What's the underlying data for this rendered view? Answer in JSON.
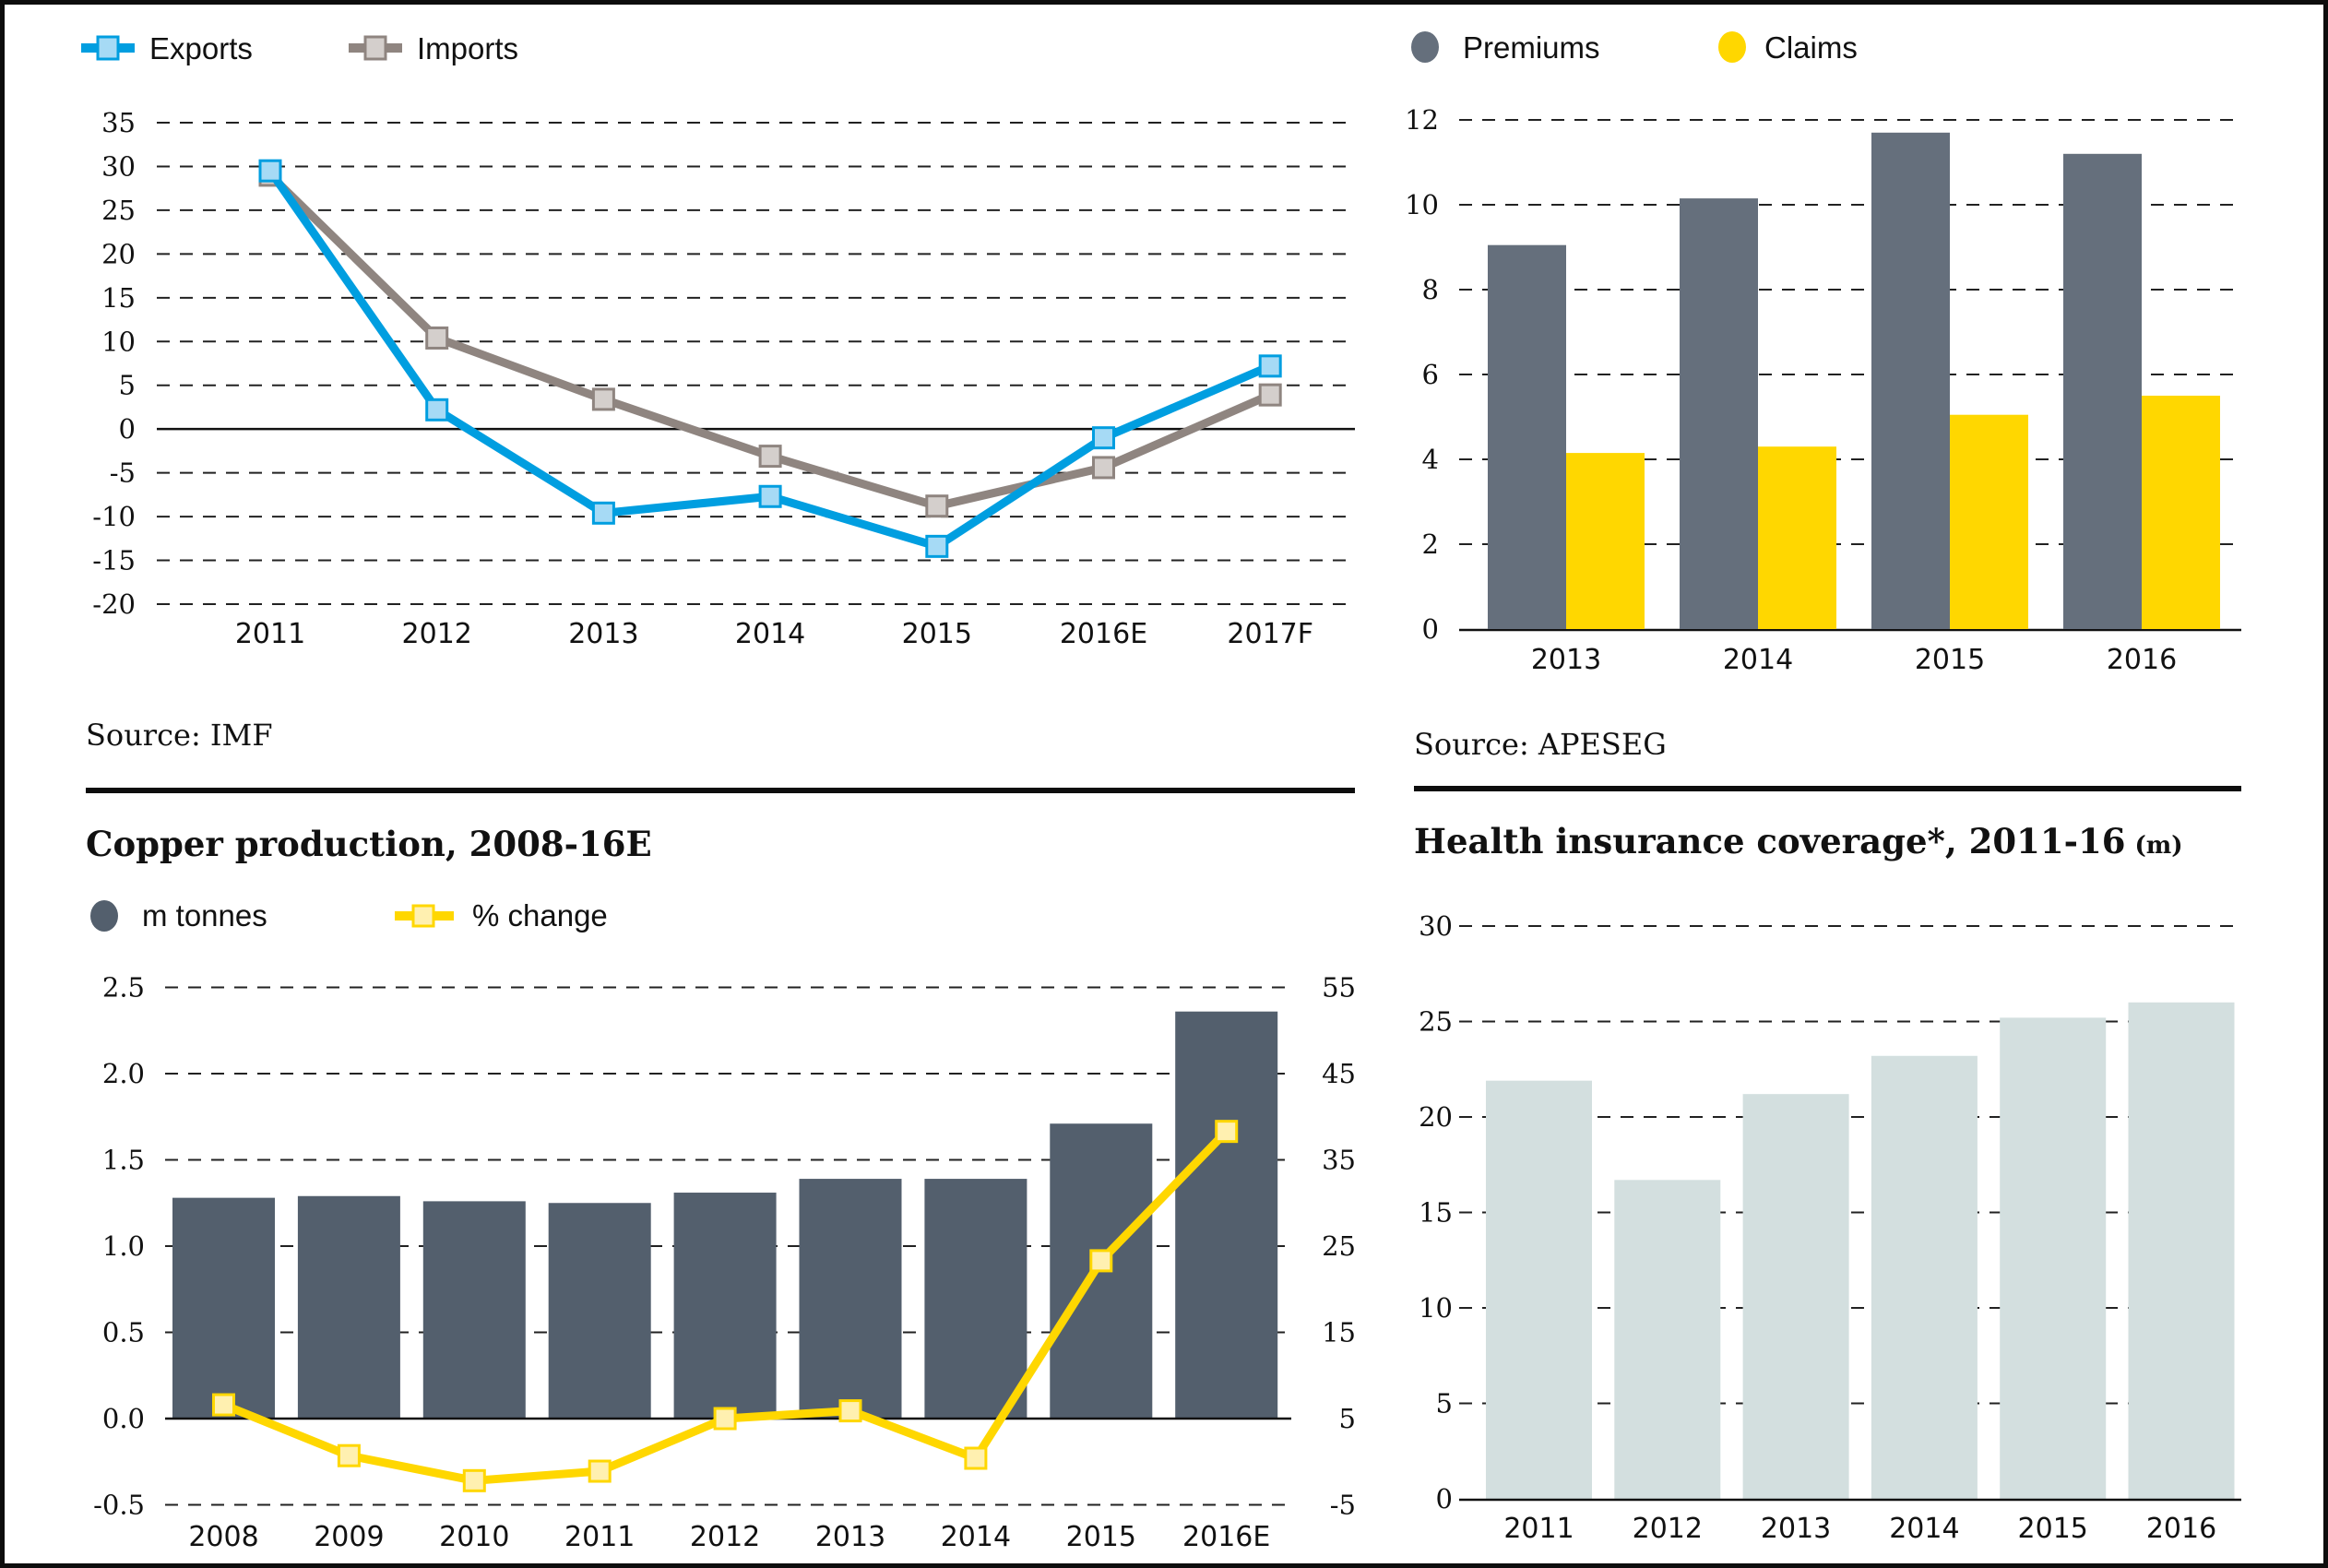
{
  "colors": {
    "exports_line": "#009ee0",
    "exports_marker": "#a6daf5",
    "imports_line": "#8f8580",
    "imports_marker": "#d4cfcc",
    "premiums": "#656f7c",
    "claims": "#ffd700",
    "copper_bars": "#535f6d",
    "change_line": "#ffd700",
    "change_marker": "#fff0b0",
    "health_bars": "#d3dfdf"
  },
  "panels": {
    "trade": {
      "legend": [
        "Exports",
        "Imports"
      ],
      "source": "Source: IMF"
    },
    "insurance": {
      "legend": [
        "Premiums",
        "Claims"
      ],
      "source": "Source: APESEG"
    },
    "copper": {
      "title": "Copper production, 2008-16E",
      "legend": [
        "m tonnes",
        "% change"
      ]
    },
    "health": {
      "title": "Health insurance coverage*, 2011-16",
      "title_unit": "(m)"
    }
  },
  "chart_data": [
    {
      "id": "trade",
      "type": "line",
      "title": "",
      "categories": [
        "2011",
        "2012",
        "2013",
        "2014",
        "2015",
        "2016E",
        "2017F"
      ],
      "series": [
        {
          "name": "Exports",
          "values": [
            29.5,
            2.2,
            -9.6,
            -7.7,
            -13.4,
            -1.0,
            7.2
          ]
        },
        {
          "name": "Imports",
          "values": [
            29.0,
            10.4,
            3.4,
            -3.1,
            -8.8,
            -4.4,
            3.9
          ]
        }
      ],
      "yticks": [
        "35",
        "30",
        "25",
        "20",
        "15",
        "10",
        "5",
        "0",
        "-5",
        "-10",
        "-15",
        "-20"
      ],
      "ylim": [
        -20,
        35
      ],
      "grid": true,
      "legend": "top-left",
      "source": "Source: IMF"
    },
    {
      "id": "insurance",
      "type": "bar",
      "title": "",
      "categories": [
        "2013",
        "2014",
        "2015",
        "2016"
      ],
      "series": [
        {
          "name": "Premiums",
          "values": [
            9.05,
            10.15,
            11.7,
            11.2
          ]
        },
        {
          "name": "Claims",
          "values": [
            4.15,
            4.3,
            5.05,
            5.5
          ]
        }
      ],
      "yticks": [
        "12",
        "10",
        "8",
        "6",
        "4",
        "2",
        "0"
      ],
      "ylim": [
        0,
        12
      ],
      "grid": true,
      "legend": "top-left",
      "source": "Source: APESEG"
    },
    {
      "id": "copper",
      "type": "bar",
      "title": "Copper production, 2008-16E",
      "categories": [
        "2008",
        "2009",
        "2010",
        "2011",
        "2012",
        "2013",
        "2014",
        "2015",
        "2016E"
      ],
      "series": [
        {
          "name": "m tonnes",
          "type": "bar",
          "axis": "left",
          "values": [
            1.28,
            1.29,
            1.26,
            1.25,
            1.31,
            1.39,
            1.39,
            1.71,
            2.36
          ]
        },
        {
          "name": "% change",
          "type": "line",
          "axis": "right",
          "values": [
            6.6,
            0.7,
            -2.2,
            -1.1,
            5.0,
            5.9,
            0.4,
            23.3,
            38.3
          ]
        }
      ],
      "yticks_left": [
        "2.5",
        "2.0",
        "1.5",
        "1.0",
        "0.5",
        "0.0",
        "-0.5"
      ],
      "yticks_right": [
        "55",
        "45",
        "35",
        "25",
        "15",
        "5",
        "-5"
      ],
      "ylim_left": [
        -0.5,
        2.5
      ],
      "ylim_right": [
        -5,
        55
      ],
      "grid": true,
      "legend": "top-left"
    },
    {
      "id": "health",
      "type": "bar",
      "title": "Health insurance coverage*, 2011-16 (m)",
      "categories": [
        "2011",
        "2012",
        "2013",
        "2014",
        "2015",
        "2016"
      ],
      "series": [
        {
          "name": "Coverage (m)",
          "values": [
            21.9,
            16.7,
            21.2,
            23.2,
            25.2,
            26.0
          ]
        }
      ],
      "yticks": [
        "30",
        "25",
        "20",
        "15",
        "10",
        "5",
        "0"
      ],
      "ylim": [
        0,
        30
      ],
      "grid": true
    }
  ]
}
